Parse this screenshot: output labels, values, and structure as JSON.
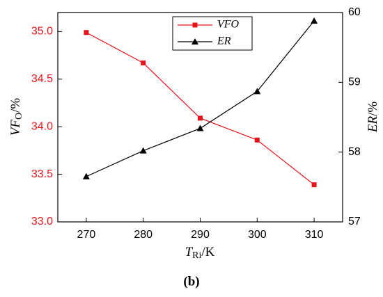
{
  "chart_data": {
    "type": "line",
    "x": [
      270,
      280,
      290,
      300,
      310
    ],
    "xlim": [
      265,
      315
    ],
    "xticks": [
      270,
      280,
      290,
      300,
      310
    ],
    "ylim": [
      33.0,
      35.2
    ],
    "yticks": [
      {
        "value": 33,
        "label": "33.0"
      },
      {
        "value": 33.5,
        "label": "33.5"
      },
      {
        "value": 34,
        "label": "34.0"
      },
      {
        "value": 34.5,
        "label": "34.5"
      },
      {
        "value": 35,
        "label": "35.0"
      }
    ],
    "y2lim": [
      57,
      60
    ],
    "y2ticks": [
      57,
      58,
      59,
      60
    ],
    "y_color": "#e8141c",
    "ylabel": {
      "main": "VF",
      "sub": "O",
      "unit": "/%"
    },
    "y2label": {
      "main": "ER",
      "unit": "/%"
    },
    "xlabel": {
      "main": "T",
      "sub": "Ri",
      "unit": "/K"
    },
    "caption": "(b)",
    "legend": "top-center",
    "series": [
      {
        "name": "VFO",
        "color": "#e8141c",
        "marker": "square",
        "values": [
          34.99,
          34.67,
          34.09,
          33.86,
          33.39
        ]
      },
      {
        "name": "ER",
        "color": "#000000",
        "marker": "triangle",
        "axis": "y2",
        "values": [
          57.65,
          58.02,
          58.34,
          58.87,
          59.88
        ]
      }
    ]
  }
}
